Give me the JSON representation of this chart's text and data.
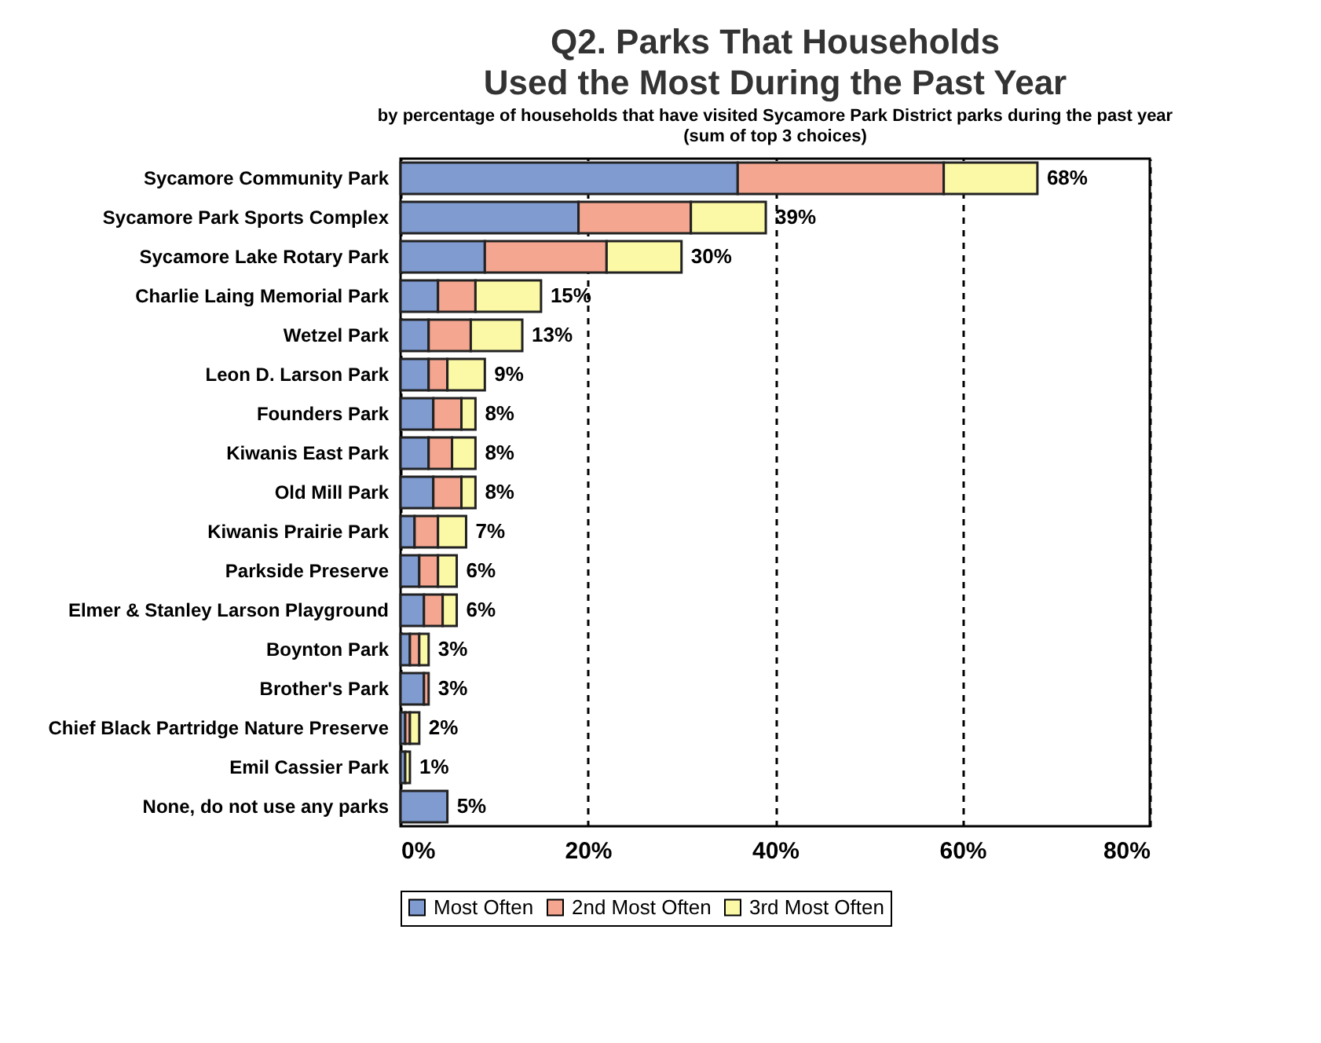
{
  "chart_data": {
    "type": "bar",
    "orientation": "horizontal",
    "stacked": true,
    "title": "Q2. Parks That Households\nUsed the Most During the Past Year",
    "subtitle": "by percentage of households that have visited Sycamore Park District parks during the past year\n(sum of top 3 choices)",
    "categories": [
      "Sycamore Community Park",
      "Sycamore Park Sports Complex",
      "Sycamore Lake Rotary Park",
      "Charlie Laing Memorial Park",
      "Wetzel Park",
      "Leon D. Larson Park",
      "Founders Park",
      "Kiwanis East Park",
      "Old Mill Park",
      "Kiwanis Prairie Park",
      "Parkside Preserve",
      "Elmer & Stanley Larson Playground",
      "Boynton Park",
      "Brother's Park",
      "Chief Black Partridge Nature Preserve",
      "Emil Cassier Park",
      "None, do not use any parks"
    ],
    "series": [
      {
        "name": "Most Often",
        "color": "#7f9bd0",
        "values": [
          36,
          19,
          9,
          4,
          3,
          3,
          3.5,
          3,
          3.5,
          1.5,
          2,
          2.5,
          1,
          2.5,
          0.5,
          0.5,
          5
        ]
      },
      {
        "name": "2nd Most Often",
        "color": "#f4a690",
        "values": [
          22,
          12,
          13,
          4,
          4.5,
          2,
          3,
          2.5,
          3,
          2.5,
          2,
          2,
          1,
          0.5,
          0.5,
          null,
          null
        ]
      },
      {
        "name": "3rd Most Often",
        "color": "#fcf9a6",
        "values": [
          10,
          8,
          8,
          7,
          5.5,
          4,
          1.5,
          2.5,
          1.5,
          3,
          2,
          1.5,
          1,
          null,
          1,
          0.5,
          null
        ]
      }
    ],
    "totals": [
      "68%",
      "39%",
      "30%",
      "15%",
      "13%",
      "9%",
      "8%",
      "8%",
      "8%",
      "7%",
      "6%",
      "6%",
      "3%",
      "3%",
      "2%",
      "1%",
      "5%"
    ],
    "xlim": [
      0,
      80
    ],
    "xticks": [
      {
        "value": 0,
        "label": "0%"
      },
      {
        "value": 20,
        "label": "20%"
      },
      {
        "value": 40,
        "label": "40%"
      },
      {
        "value": 60,
        "label": "60%"
      },
      {
        "value": 80,
        "label": "80%"
      }
    ],
    "grid": "x",
    "line_style": "dashed",
    "legend": "bottom"
  }
}
